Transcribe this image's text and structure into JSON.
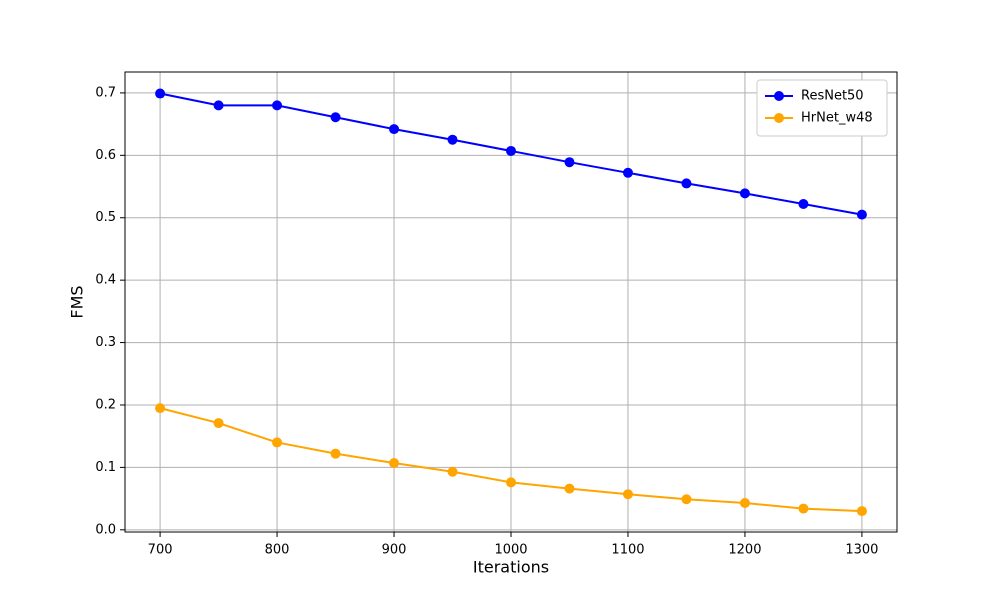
{
  "chart_data": {
    "type": "line",
    "x_label": "Iterations",
    "y_label": "FMS",
    "x": [
      700,
      750,
      800,
      850,
      900,
      950,
      1000,
      1050,
      1100,
      1150,
      1200,
      1250,
      1300
    ],
    "series": [
      {
        "name": "ResNet50",
        "color": "#0000ff",
        "values": [
          0.699,
          0.68,
          0.68,
          0.661,
          0.642,
          0.625,
          0.607,
          0.589,
          0.572,
          0.555,
          0.539,
          0.522,
          0.505
        ]
      },
      {
        "name": "HrNet_w48",
        "color": "#ffa500",
        "values": [
          0.195,
          0.171,
          0.14,
          0.122,
          0.107,
          0.093,
          0.076,
          0.066,
          0.057,
          0.049,
          0.043,
          0.034,
          0.03
        ]
      }
    ],
    "xlim": [
      670,
      1330
    ],
    "ylim": [
      -0.0035,
      0.7335
    ],
    "xticks": [
      700,
      800,
      900,
      1000,
      1100,
      1200,
      1300
    ],
    "yticks": [
      {
        "value": 0,
        "label": "0.0"
      },
      0.1,
      0.2,
      0.3,
      0.4,
      0.5,
      0.6,
      0.7
    ],
    "grid": true,
    "legend": "upper-right"
  }
}
